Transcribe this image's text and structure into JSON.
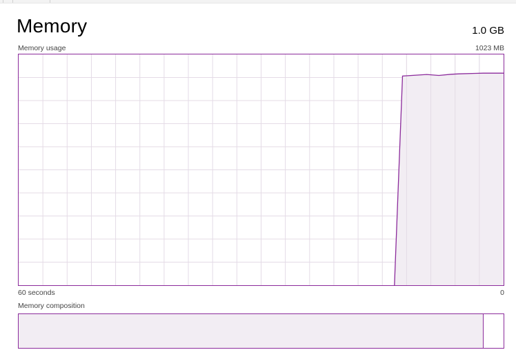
{
  "header": {
    "title": "Memory",
    "total": "1.0 GB"
  },
  "usage_graph": {
    "label": "Memory usage",
    "max_label": "1023 MB",
    "axis_left": "60 seconds",
    "axis_right": "0",
    "line_color": "#8b2a9b",
    "fill_color": "#f2edf3",
    "grid_color": "#e4dbe6"
  },
  "chart_data": {
    "type": "area",
    "title": "Memory usage",
    "x": [
      60,
      13.5,
      12.5,
      9.5,
      8,
      6.5,
      5.5,
      3.5,
      2.5,
      0.5,
      0
    ],
    "values": [
      0,
      0,
      927,
      934,
      930,
      935,
      937,
      939,
      940,
      940,
      940
    ],
    "xlim": [
      60,
      0
    ],
    "ylim": [
      0,
      1023
    ],
    "grid": true,
    "y_unit": "MB"
  },
  "composition": {
    "label": "Memory composition",
    "in_use_fraction": 0.957
  }
}
